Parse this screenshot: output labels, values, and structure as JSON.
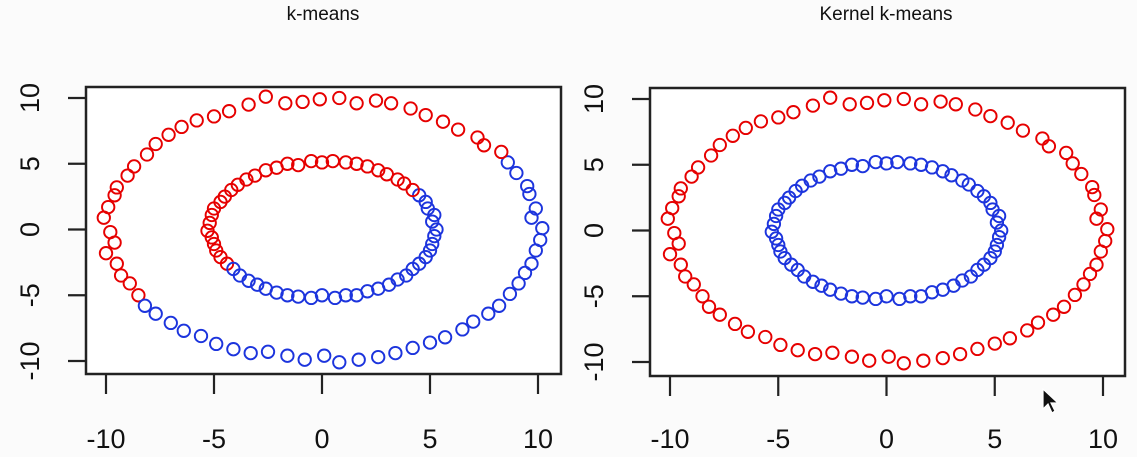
{
  "chart_data": [
    {
      "type": "scatter",
      "title": "k-means",
      "xlabel": "",
      "ylabel": "",
      "xlim": [
        -10.7,
        11.1
      ],
      "ylim": [
        -11,
        11.3
      ],
      "xticks": [
        -10,
        -5,
        0,
        5,
        10
      ],
      "yticks": [
        -10,
        -5,
        0,
        5,
        10
      ],
      "grid": false,
      "cluster_colors": {
        "1": "#e60000",
        "2": "#1c34dd"
      },
      "points": [
        [
          10.2,
          0.1
        ],
        [
          9.7,
          0.9
        ],
        [
          9.9,
          1.6
        ],
        [
          9.6,
          2.7
        ],
        [
          9.5,
          3.3
        ],
        [
          9.0,
          4.3
        ],
        [
          8.6,
          5.1
        ],
        [
          8.3,
          5.9
        ],
        [
          7.5,
          6.4
        ],
        [
          7.2,
          7.0
        ],
        [
          6.3,
          7.6
        ],
        [
          5.6,
          8.2
        ],
        [
          4.8,
          8.7
        ],
        [
          4.1,
          9.2
        ],
        [
          3.2,
          9.6
        ],
        [
          2.5,
          9.8
        ],
        [
          1.6,
          9.6
        ],
        [
          0.8,
          10.0
        ],
        [
          -0.1,
          9.9
        ],
        [
          -0.9,
          9.7
        ],
        [
          -1.7,
          9.6
        ],
        [
          -2.6,
          10.1
        ],
        [
          -3.4,
          9.5
        ],
        [
          -4.3,
          9.0
        ],
        [
          -5.0,
          8.6
        ],
        [
          -5.8,
          8.3
        ],
        [
          -6.5,
          7.8
        ],
        [
          -7.1,
          7.2
        ],
        [
          -7.7,
          6.5
        ],
        [
          -8.1,
          5.7
        ],
        [
          -8.7,
          4.8
        ],
        [
          -9.0,
          4.1
        ],
        [
          -9.5,
          3.2
        ],
        [
          -9.6,
          2.6
        ],
        [
          -9.9,
          1.7
        ],
        [
          -10.1,
          0.9
        ],
        [
          -9.8,
          -0.2
        ],
        [
          -9.6,
          -1.0
        ],
        [
          -10.0,
          -1.8
        ],
        [
          -9.5,
          -2.6
        ],
        [
          -9.3,
          -3.5
        ],
        [
          -8.9,
          -4.1
        ],
        [
          -8.5,
          -5.0
        ],
        [
          -8.2,
          -5.8
        ],
        [
          -7.7,
          -6.4
        ],
        [
          -7.0,
          -7.1
        ],
        [
          -6.4,
          -7.7
        ],
        [
          -5.6,
          -8.1
        ],
        [
          -4.9,
          -8.7
        ],
        [
          -4.1,
          -9.1
        ],
        [
          -3.3,
          -9.4
        ],
        [
          -2.5,
          -9.3
        ],
        [
          -1.6,
          -9.6
        ],
        [
          -0.8,
          -9.9
        ],
        [
          0.1,
          -9.6
        ],
        [
          0.8,
          -10.1
        ],
        [
          1.7,
          -9.9
        ],
        [
          2.6,
          -9.7
        ],
        [
          3.4,
          -9.4
        ],
        [
          4.2,
          -9.0
        ],
        [
          5.0,
          -8.6
        ],
        [
          5.7,
          -8.2
        ],
        [
          6.5,
          -7.6
        ],
        [
          7.0,
          -7.0
        ],
        [
          7.7,
          -6.4
        ],
        [
          8.2,
          -5.8
        ],
        [
          8.7,
          -4.9
        ],
        [
          9.1,
          -4.1
        ],
        [
          9.4,
          -3.3
        ],
        [
          9.7,
          -2.6
        ],
        [
          9.9,
          -1.6
        ],
        [
          10.1,
          -0.8
        ],
        [
          5.3,
          0.0
        ],
        [
          5.1,
          0.6
        ],
        [
          5.2,
          1.1
        ],
        [
          4.9,
          1.6
        ],
        [
          4.8,
          2.1
        ],
        [
          4.5,
          2.6
        ],
        [
          4.2,
          3.0
        ],
        [
          3.8,
          3.5
        ],
        [
          3.5,
          3.8
        ],
        [
          3.0,
          4.2
        ],
        [
          2.6,
          4.5
        ],
        [
          2.1,
          4.8
        ],
        [
          1.6,
          5.0
        ],
        [
          1.1,
          5.1
        ],
        [
          0.5,
          5.2
        ],
        [
          0.0,
          5.1
        ],
        [
          -0.5,
          5.2
        ],
        [
          -1.1,
          4.9
        ],
        [
          -1.6,
          5.0
        ],
        [
          -2.1,
          4.7
        ],
        [
          -2.6,
          4.5
        ],
        [
          -3.1,
          4.1
        ],
        [
          -3.5,
          3.8
        ],
        [
          -3.9,
          3.4
        ],
        [
          -4.2,
          3.0
        ],
        [
          -4.5,
          2.5
        ],
        [
          -4.7,
          2.1
        ],
        [
          -5.0,
          1.6
        ],
        [
          -5.1,
          1.1
        ],
        [
          -5.2,
          0.5
        ],
        [
          -5.3,
          -0.1
        ],
        [
          -5.1,
          -0.6
        ],
        [
          -5.0,
          -1.1
        ],
        [
          -4.9,
          -1.6
        ],
        [
          -4.7,
          -2.1
        ],
        [
          -4.4,
          -2.6
        ],
        [
          -4.1,
          -3.0
        ],
        [
          -3.8,
          -3.5
        ],
        [
          -3.4,
          -3.9
        ],
        [
          -3.0,
          -4.2
        ],
        [
          -2.6,
          -4.5
        ],
        [
          -2.1,
          -4.8
        ],
        [
          -1.6,
          -5.0
        ],
        [
          -1.1,
          -5.1
        ],
        [
          -0.5,
          -5.2
        ],
        [
          0.0,
          -5.0
        ],
        [
          0.6,
          -5.2
        ],
        [
          1.1,
          -5.0
        ],
        [
          1.6,
          -5.0
        ],
        [
          2.1,
          -4.7
        ],
        [
          2.6,
          -4.5
        ],
        [
          3.1,
          -4.2
        ],
        [
          3.5,
          -3.8
        ],
        [
          3.9,
          -3.5
        ],
        [
          4.2,
          -3.0
        ],
        [
          4.5,
          -2.6
        ],
        [
          4.8,
          -2.1
        ],
        [
          5.0,
          -1.6
        ],
        [
          5.1,
          -1.1
        ],
        [
          5.2,
          -0.5
        ]
      ],
      "cluster": [
        2,
        2,
        2,
        2,
        2,
        2,
        2,
        1,
        1,
        1,
        1,
        1,
        1,
        1,
        1,
        1,
        1,
        1,
        1,
        1,
        1,
        1,
        1,
        1,
        1,
        1,
        1,
        1,
        1,
        1,
        1,
        1,
        1,
        1,
        1,
        1,
        1,
        1,
        1,
        1,
        1,
        1,
        1,
        2,
        2,
        2,
        2,
        2,
        2,
        2,
        2,
        2,
        2,
        2,
        2,
        2,
        2,
        2,
        2,
        2,
        2,
        2,
        2,
        2,
        2,
        2,
        2,
        2,
        2,
        2,
        2,
        2,
        2,
        2,
        2,
        2,
        2,
        2,
        1,
        1,
        1,
        1,
        1,
        1,
        1,
        1,
        1,
        1,
        1,
        1,
        1,
        1,
        1,
        1,
        1,
        1,
        1,
        1,
        1,
        1,
        1,
        1,
        1,
        1,
        1,
        1,
        1,
        1,
        2,
        2,
        2,
        2,
        2,
        2,
        2,
        2,
        2,
        2,
        2,
        2,
        2,
        2,
        2,
        2,
        2,
        2,
        2,
        2,
        2,
        2,
        2,
        2
      ]
    },
    {
      "type": "scatter",
      "title": "Kernel k-means",
      "xlabel": "",
      "ylabel": "",
      "xlim": [
        -10.9,
        11.2
      ],
      "ylim": [
        -11.1,
        11.2
      ],
      "xticks": [
        -10,
        -5,
        0,
        5,
        10
      ],
      "yticks": [
        -10,
        -5,
        0,
        5,
        10
      ],
      "grid": false,
      "cluster_colors": {
        "1": "#e60000",
        "2": "#1c34dd"
      },
      "points": [
        [
          10.2,
          0.1
        ],
        [
          9.7,
          0.9
        ],
        [
          9.9,
          1.6
        ],
        [
          9.6,
          2.7
        ],
        [
          9.5,
          3.3
        ],
        [
          9.0,
          4.3
        ],
        [
          8.6,
          5.1
        ],
        [
          8.3,
          5.9
        ],
        [
          7.5,
          6.4
        ],
        [
          7.2,
          7.0
        ],
        [
          6.3,
          7.6
        ],
        [
          5.6,
          8.2
        ],
        [
          4.8,
          8.7
        ],
        [
          4.1,
          9.2
        ],
        [
          3.2,
          9.6
        ],
        [
          2.5,
          9.8
        ],
        [
          1.6,
          9.6
        ],
        [
          0.8,
          10.0
        ],
        [
          -0.1,
          9.9
        ],
        [
          -0.9,
          9.7
        ],
        [
          -1.7,
          9.6
        ],
        [
          -2.6,
          10.1
        ],
        [
          -3.4,
          9.5
        ],
        [
          -4.3,
          9.0
        ],
        [
          -5.0,
          8.6
        ],
        [
          -5.8,
          8.3
        ],
        [
          -6.5,
          7.8
        ],
        [
          -7.1,
          7.2
        ],
        [
          -7.7,
          6.5
        ],
        [
          -8.1,
          5.7
        ],
        [
          -8.7,
          4.8
        ],
        [
          -9.0,
          4.1
        ],
        [
          -9.5,
          3.2
        ],
        [
          -9.6,
          2.6
        ],
        [
          -9.9,
          1.7
        ],
        [
          -10.1,
          0.9
        ],
        [
          -9.8,
          -0.2
        ],
        [
          -9.6,
          -1.0
        ],
        [
          -10.0,
          -1.8
        ],
        [
          -9.5,
          -2.6
        ],
        [
          -9.3,
          -3.5
        ],
        [
          -8.9,
          -4.1
        ],
        [
          -8.5,
          -5.0
        ],
        [
          -8.2,
          -5.8
        ],
        [
          -7.7,
          -6.4
        ],
        [
          -7.0,
          -7.1
        ],
        [
          -6.4,
          -7.7
        ],
        [
          -5.6,
          -8.1
        ],
        [
          -4.9,
          -8.7
        ],
        [
          -4.1,
          -9.1
        ],
        [
          -3.3,
          -9.4
        ],
        [
          -2.5,
          -9.3
        ],
        [
          -1.6,
          -9.6
        ],
        [
          -0.8,
          -9.9
        ],
        [
          0.1,
          -9.6
        ],
        [
          0.8,
          -10.1
        ],
        [
          1.7,
          -9.9
        ],
        [
          2.6,
          -9.7
        ],
        [
          3.4,
          -9.4
        ],
        [
          4.2,
          -9.0
        ],
        [
          5.0,
          -8.6
        ],
        [
          5.7,
          -8.2
        ],
        [
          6.5,
          -7.6
        ],
        [
          7.0,
          -7.0
        ],
        [
          7.7,
          -6.4
        ],
        [
          8.2,
          -5.8
        ],
        [
          8.7,
          -4.9
        ],
        [
          9.1,
          -4.1
        ],
        [
          9.4,
          -3.3
        ],
        [
          9.7,
          -2.6
        ],
        [
          9.9,
          -1.6
        ],
        [
          10.1,
          -0.8
        ],
        [
          5.3,
          0.0
        ],
        [
          5.1,
          0.6
        ],
        [
          5.2,
          1.1
        ],
        [
          4.9,
          1.6
        ],
        [
          4.8,
          2.1
        ],
        [
          4.5,
          2.6
        ],
        [
          4.2,
          3.0
        ],
        [
          3.8,
          3.5
        ],
        [
          3.5,
          3.8
        ],
        [
          3.0,
          4.2
        ],
        [
          2.6,
          4.5
        ],
        [
          2.1,
          4.8
        ],
        [
          1.6,
          5.0
        ],
        [
          1.1,
          5.1
        ],
        [
          0.5,
          5.2
        ],
        [
          0.0,
          5.1
        ],
        [
          -0.5,
          5.2
        ],
        [
          -1.1,
          4.9
        ],
        [
          -1.6,
          5.0
        ],
        [
          -2.1,
          4.7
        ],
        [
          -2.6,
          4.5
        ],
        [
          -3.1,
          4.1
        ],
        [
          -3.5,
          3.8
        ],
        [
          -3.9,
          3.4
        ],
        [
          -4.2,
          3.0
        ],
        [
          -4.5,
          2.5
        ],
        [
          -4.7,
          2.1
        ],
        [
          -5.0,
          1.6
        ],
        [
          -5.1,
          1.1
        ],
        [
          -5.2,
          0.5
        ],
        [
          -5.3,
          -0.1
        ],
        [
          -5.1,
          -0.6
        ],
        [
          -5.0,
          -1.1
        ],
        [
          -4.9,
          -1.6
        ],
        [
          -4.7,
          -2.1
        ],
        [
          -4.4,
          -2.6
        ],
        [
          -4.1,
          -3.0
        ],
        [
          -3.8,
          -3.5
        ],
        [
          -3.4,
          -3.9
        ],
        [
          -3.0,
          -4.2
        ],
        [
          -2.6,
          -4.5
        ],
        [
          -2.1,
          -4.8
        ],
        [
          -1.6,
          -5.0
        ],
        [
          -1.1,
          -5.1
        ],
        [
          -0.5,
          -5.2
        ],
        [
          0.0,
          -5.0
        ],
        [
          0.6,
          -5.2
        ],
        [
          1.1,
          -5.0
        ],
        [
          1.6,
          -5.0
        ],
        [
          2.1,
          -4.7
        ],
        [
          2.6,
          -4.5
        ],
        [
          3.1,
          -4.2
        ],
        [
          3.5,
          -3.8
        ],
        [
          3.9,
          -3.5
        ],
        [
          4.2,
          -3.0
        ],
        [
          4.5,
          -2.6
        ],
        [
          4.8,
          -2.1
        ],
        [
          5.0,
          -1.6
        ],
        [
          5.1,
          -1.1
        ],
        [
          5.2,
          -0.5
        ]
      ],
      "cluster": [
        1,
        1,
        1,
        1,
        1,
        1,
        1,
        1,
        1,
        1,
        1,
        1,
        1,
        1,
        1,
        1,
        1,
        1,
        1,
        1,
        1,
        1,
        1,
        1,
        1,
        1,
        1,
        1,
        1,
        1,
        1,
        1,
        1,
        1,
        1,
        1,
        1,
        1,
        1,
        1,
        1,
        1,
        1,
        1,
        1,
        1,
        1,
        1,
        1,
        1,
        1,
        1,
        1,
        1,
        1,
        1,
        1,
        1,
        1,
        1,
        1,
        1,
        1,
        1,
        1,
        1,
        1,
        1,
        1,
        1,
        1,
        1,
        2,
        2,
        2,
        2,
        2,
        2,
        2,
        2,
        2,
        2,
        2,
        2,
        2,
        2,
        2,
        2,
        2,
        2,
        2,
        2,
        2,
        2,
        2,
        2,
        2,
        2,
        2,
        2,
        2,
        2,
        2,
        2,
        2,
        2,
        2,
        2,
        2,
        2,
        2,
        2,
        2,
        2,
        2,
        2,
        2,
        2,
        2,
        2,
        2,
        2,
        2,
        2,
        2,
        2,
        2,
        2,
        2,
        2,
        2,
        2
      ]
    }
  ]
}
